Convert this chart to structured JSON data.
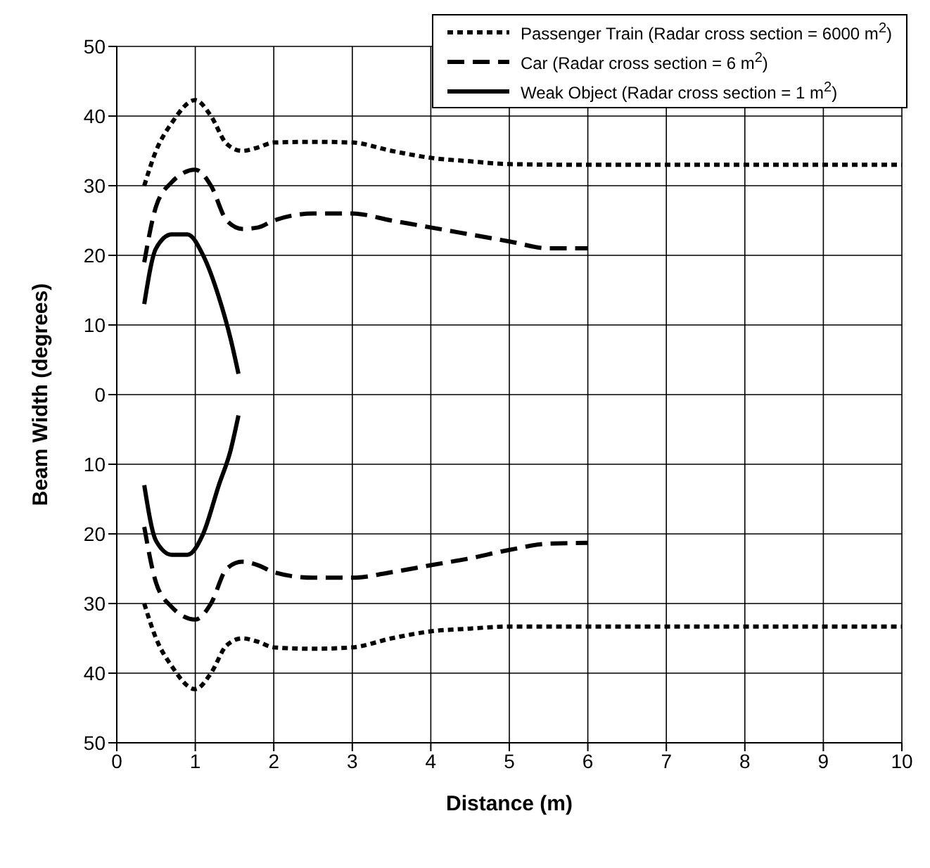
{
  "chart_data": {
    "type": "line",
    "xlabel": "Distance (m)",
    "ylabel": "Beam Width (degrees)",
    "xlim": [
      0,
      10
    ],
    "xticks": [
      0,
      1,
      2,
      3,
      4,
      5,
      6,
      7,
      8,
      9,
      10
    ],
    "ylim": [
      -50,
      50
    ],
    "yticks": [
      {
        "value": -50,
        "label": "50"
      },
      {
        "value": -40,
        "label": "40"
      },
      {
        "value": -30,
        "label": "30"
      },
      {
        "value": -20,
        "label": "20"
      },
      {
        "value": -10,
        "label": "10"
      },
      0,
      10,
      20,
      30,
      40,
      50
    ],
    "grid": true,
    "legend": "top right",
    "marker": "none",
    "series": [
      {
        "name": "Passenger Train (Radar cross section = 6000 m$^{2}$)",
        "color": "#000000",
        "line_style": "dotted",
        "x": [
          0.35,
          0.5,
          0.7,
          1.0,
          1.2,
          1.4,
          1.6,
          1.8,
          2,
          2.5,
          3,
          3.5,
          4,
          4.5,
          5,
          6,
          7,
          8,
          9,
          10
        ],
        "values": [
          30,
          35,
          39,
          42.3,
          40,
          36,
          35,
          35.5,
          36.2,
          36.3,
          36.2,
          35,
          34,
          33.5,
          33.1,
          33,
          33,
          33,
          33,
          33
        ]
      },
      {
        "color": "#000000",
        "line_style": "dotted",
        "x": [
          0.35,
          0.5,
          0.7,
          1.0,
          1.2,
          1.4,
          1.6,
          1.8,
          2,
          2.5,
          3,
          3.5,
          4,
          4.5,
          5,
          6,
          7,
          8,
          9,
          10
        ],
        "values": [
          -30,
          -35,
          -39,
          -42.3,
          -40,
          -36,
          -35,
          -35.5,
          -36.3,
          -36.5,
          -36.3,
          -35,
          -34,
          -33.6,
          -33.3,
          -33.3,
          -33.3,
          -33.3,
          -33.3,
          -33.3
        ]
      },
      {
        "name": "Car (Radar cross section = 6 m$^{2}$)",
        "color": "#000000",
        "line_style": "dashed",
        "x": [
          0.35,
          0.5,
          0.7,
          1.0,
          1.2,
          1.4,
          1.6,
          1.8,
          2,
          2.5,
          3,
          3.5,
          4,
          4.5,
          5,
          5.5,
          6
        ],
        "values": [
          19,
          27,
          30.5,
          32.3,
          30,
          25,
          23.8,
          24,
          25,
          26,
          26,
          25,
          24,
          23,
          22,
          21,
          21
        ]
      },
      {
        "color": "#000000",
        "line_style": "dashed",
        "x": [
          0.35,
          0.5,
          0.7,
          1.0,
          1.2,
          1.4,
          1.6,
          1.8,
          2,
          2.5,
          3,
          3.5,
          4,
          4.5,
          5,
          5.5,
          6
        ],
        "values": [
          -19,
          -27,
          -30.5,
          -32.3,
          -30,
          -25,
          -24,
          -24.5,
          -25.5,
          -26.3,
          -26.3,
          -25.5,
          -24.5,
          -23.5,
          -22.3,
          -21.4,
          -21.3
        ]
      },
      {
        "name": "Weak Object (Radar cross section = 1 m$^{2}$)",
        "color": "#000000",
        "line_style": "solid",
        "x": [
          0.35,
          0.5,
          0.7,
          0.9,
          1.1,
          1.3,
          1.45,
          1.55
        ],
        "values": [
          13,
          21,
          23,
          23,
          20,
          14,
          8,
          3
        ]
      },
      {
        "color": "#000000",
        "line_style": "solid",
        "x": [
          0.35,
          0.5,
          0.7,
          0.9,
          1.1,
          1.3,
          1.45,
          1.55
        ],
        "values": [
          -13,
          -21,
          -23,
          -23,
          -20,
          -13,
          -8,
          -3
        ]
      }
    ]
  }
}
